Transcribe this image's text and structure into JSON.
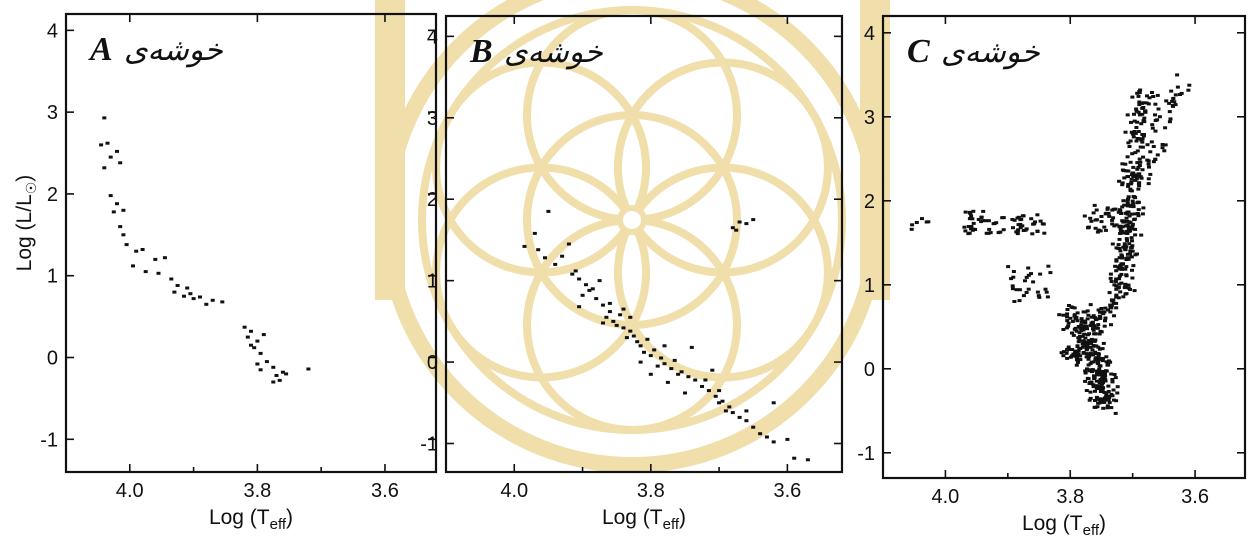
{
  "watermark": {
    "color": "#f0dfab"
  },
  "chart_data": [
    {
      "type": "scatter",
      "panel_label": "A",
      "title_word": "خوشه‌ی",
      "xlabel": "Log (T",
      "xlabel_sub": "eff",
      "xlabel_close": ")",
      "ylabel": "Log (L/L",
      "ylabel_sub": "☉",
      "ylabel_close": ")",
      "xlim": [
        4.1,
        3.52
      ],
      "ylim": [
        -1.4,
        4.2
      ],
      "xticks": [
        "4.0",
        "3.8",
        "3.6"
      ],
      "xtick_values": [
        4.0,
        3.8,
        3.6
      ],
      "yticks": [
        "4",
        "3",
        "2",
        "1",
        "0",
        "-1"
      ],
      "ytick_values": [
        4,
        3,
        2,
        1,
        0,
        -1
      ],
      "points": [
        [
          4.04,
          2.93
        ],
        [
          4.045,
          2.6
        ],
        [
          4.035,
          2.62
        ],
        [
          4.03,
          2.45
        ],
        [
          4.015,
          2.38
        ],
        [
          4.04,
          2.32
        ],
        [
          4.02,
          2.52
        ],
        [
          4.03,
          1.98
        ],
        [
          4.02,
          1.88
        ],
        [
          4.01,
          1.8
        ],
        [
          4.025,
          1.78
        ],
        [
          4.015,
          1.6
        ],
        [
          4.01,
          1.5
        ],
        [
          4.005,
          1.38
        ],
        [
          3.99,
          1.3
        ],
        [
          3.98,
          1.32
        ],
        [
          3.96,
          1.2
        ],
        [
          3.995,
          1.12
        ],
        [
          3.975,
          1.05
        ],
        [
          3.945,
          1.22
        ],
        [
          3.955,
          1.03
        ],
        [
          3.935,
          0.96
        ],
        [
          3.925,
          0.88
        ],
        [
          3.93,
          0.8
        ],
        [
          3.915,
          0.75
        ],
        [
          3.91,
          0.85
        ],
        [
          3.9,
          0.72
        ],
        [
          3.89,
          0.74
        ],
        [
          3.88,
          0.65
        ],
        [
          3.87,
          0.7
        ],
        [
          3.855,
          0.68
        ],
        [
          3.905,
          0.78
        ],
        [
          3.82,
          0.37
        ],
        [
          3.81,
          0.32
        ],
        [
          3.815,
          0.25
        ],
        [
          3.8,
          0.2
        ],
        [
          3.79,
          0.28
        ],
        [
          3.805,
          0.12
        ],
        [
          3.795,
          0.05
        ],
        [
          3.785,
          -0.05
        ],
        [
          3.8,
          -0.08
        ],
        [
          3.775,
          -0.12
        ],
        [
          3.77,
          -0.22
        ],
        [
          3.76,
          -0.18
        ],
        [
          3.765,
          -0.28
        ],
        [
          3.755,
          -0.2
        ],
        [
          3.72,
          -0.14
        ],
        [
          3.775,
          -0.3
        ],
        [
          3.81,
          0.15
        ],
        [
          3.795,
          -0.15
        ]
      ]
    },
    {
      "type": "scatter",
      "panel_label": "B",
      "title_word": "خوشه‌ی",
      "xlabel": "Log (T",
      "xlabel_sub": "eff",
      "xlabel_close": ")",
      "xlim": [
        4.1,
        3.52
      ],
      "ylim": [
        -1.35,
        4.25
      ],
      "xticks": [
        "4.0",
        "3.8",
        "3.6"
      ],
      "xtick_values": [
        4.0,
        3.8,
        3.6
      ],
      "yticks": [
        "4",
        "3",
        "2",
        "1",
        "0",
        "-1"
      ],
      "ytick_values": [
        4,
        3,
        2,
        1,
        0,
        -1
      ],
      "points": [
        [
          3.95,
          1.85
        ],
        [
          3.97,
          1.58
        ],
        [
          3.92,
          1.45
        ],
        [
          3.985,
          1.42
        ],
        [
          3.965,
          1.38
        ],
        [
          3.955,
          1.28
        ],
        [
          3.94,
          1.2
        ],
        [
          3.93,
          1.3
        ],
        [
          3.91,
          1.12
        ],
        [
          3.905,
          1.02
        ],
        [
          3.895,
          0.95
        ],
        [
          3.885,
          0.9
        ],
        [
          3.9,
          0.82
        ],
        [
          3.88,
          0.78
        ],
        [
          3.87,
          0.7
        ],
        [
          3.86,
          0.62
        ],
        [
          3.865,
          0.55
        ],
        [
          3.855,
          0.5
        ],
        [
          3.845,
          0.58
        ],
        [
          3.84,
          0.42
        ],
        [
          3.83,
          0.38
        ],
        [
          3.835,
          0.3
        ],
        [
          3.82,
          0.25
        ],
        [
          3.815,
          0.2
        ],
        [
          3.81,
          0.12
        ],
        [
          3.8,
          0.08
        ],
        [
          3.795,
          0.15
        ],
        [
          3.785,
          0.05
        ],
        [
          3.78,
          -0.02
        ],
        [
          3.77,
          -0.08
        ],
        [
          3.765,
          0.02
        ],
        [
          3.755,
          -0.12
        ],
        [
          3.745,
          -0.18
        ],
        [
          3.735,
          -0.22
        ],
        [
          3.725,
          -0.3
        ],
        [
          3.715,
          -0.35
        ],
        [
          3.705,
          -0.42
        ],
        [
          3.695,
          -0.48
        ],
        [
          3.685,
          -0.55
        ],
        [
          3.68,
          -0.62
        ],
        [
          3.67,
          -0.68
        ],
        [
          3.66,
          -0.72
        ],
        [
          3.65,
          -0.8
        ],
        [
          3.64,
          -0.88
        ],
        [
          3.63,
          -0.92
        ],
        [
          3.62,
          -0.98
        ],
        [
          3.875,
          1.0
        ],
        [
          3.89,
          0.88
        ],
        [
          3.86,
          0.72
        ],
        [
          3.85,
          0.45
        ],
        [
          3.825,
          0.32
        ],
        [
          3.805,
          0.28
        ],
        [
          3.79,
          -0.05
        ],
        [
          3.76,
          -0.15
        ],
        [
          3.74,
          0.18
        ],
        [
          3.72,
          -0.22
        ],
        [
          3.7,
          -0.35
        ],
        [
          3.69,
          -0.6
        ],
        [
          3.84,
          0.65
        ],
        [
          3.87,
          0.48
        ],
        [
          3.815,
          0.0
        ],
        [
          3.8,
          -0.15
        ],
        [
          3.775,
          -0.25
        ],
        [
          3.75,
          -0.38
        ],
        [
          3.7,
          -0.5
        ],
        [
          3.68,
          1.65
        ],
        [
          3.67,
          1.72
        ],
        [
          3.66,
          1.7
        ],
        [
          3.65,
          1.75
        ],
        [
          3.675,
          1.62
        ],
        [
          3.6,
          -0.95
        ],
        [
          3.59,
          -1.18
        ],
        [
          3.57,
          -1.2
        ],
        [
          3.915,
          1.08
        ],
        [
          3.905,
          0.68
        ],
        [
          3.83,
          0.55
        ],
        [
          3.78,
          0.2
        ],
        [
          3.71,
          -0.1
        ],
        [
          3.66,
          -0.6
        ],
        [
          3.62,
          -0.5
        ]
      ]
    },
    {
      "type": "scatter",
      "panel_label": "C",
      "title_word": "خوشه‌ی",
      "xlabel": "Log (T",
      "xlabel_sub": "eff",
      "xlabel_close": ")",
      "xlim": [
        4.1,
        3.52
      ],
      "ylim": [
        -1.3,
        4.2
      ],
      "xticks": [
        "4.0",
        "3.8",
        "3.6"
      ],
      "xtick_values": [
        4.0,
        3.8,
        3.6
      ],
      "yticks": [
        "4",
        "3",
        "2",
        "1",
        "0",
        "-1"
      ],
      "ytick_values": [
        4,
        3,
        2,
        1,
        0,
        -1
      ],
      "groups": [
        {
          "name": "hb",
          "x": [
            3.84,
            3.97
          ],
          "y": [
            1.6,
            1.88
          ],
          "n": 70
        },
        {
          "name": "hb-blue",
          "x": [
            4.0,
            4.06
          ],
          "y": [
            1.62,
            1.8
          ],
          "n": 6
        },
        {
          "name": "gap-group",
          "x": [
            3.83,
            3.9
          ],
          "y": [
            0.8,
            1.25
          ],
          "n": 28
        },
        {
          "name": "red-clump",
          "x": [
            3.7,
            3.78
          ],
          "y": [
            1.62,
            1.95
          ],
          "n": 50
        },
        {
          "name": "ms-turnoff",
          "path": [
            [
              3.79,
              0.7
            ],
            [
              3.74,
              -0.45
            ]
          ],
          "w": 0.035,
          "n": 260
        },
        {
          "name": "subgiant",
          "path": [
            [
              3.8,
              0.1
            ],
            [
              3.72,
              0.9
            ]
          ],
          "w": 0.03,
          "n": 90
        },
        {
          "name": "rgb",
          "path": [
            [
              3.72,
              0.9
            ],
            [
              3.68,
              3.3
            ]
          ],
          "w": 0.03,
          "n": 260
        },
        {
          "name": "agb",
          "path": [
            [
              3.68,
              2.2
            ],
            [
              3.62,
              3.5
            ]
          ],
          "w": 0.025,
          "n": 40
        }
      ]
    }
  ]
}
